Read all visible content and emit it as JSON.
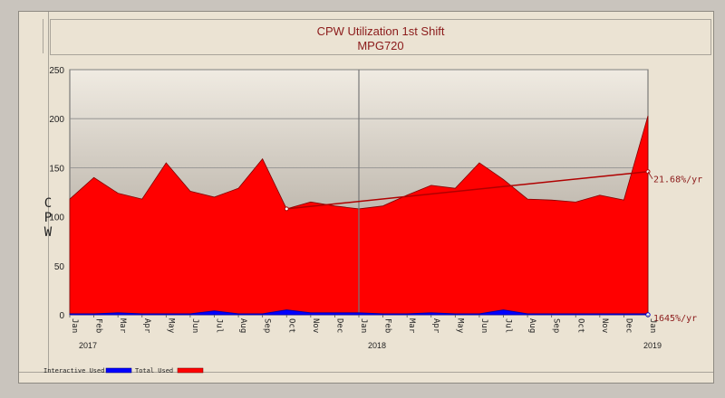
{
  "chart_data": {
    "type": "area",
    "title": "CPW Utilization 1st Shift",
    "subtitle": "MPG720",
    "ylabel": "CPW",
    "ylim": [
      0,
      250
    ],
    "yticks": [
      "0",
      "50",
      "100",
      "150",
      "200",
      "250"
    ],
    "x": [
      "Jan",
      "Feb",
      "Mar",
      "Apr",
      "May",
      "Jun",
      "Jul",
      "Aug",
      "Sep",
      "Oct",
      "Nov",
      "Dec",
      "Jan",
      "Feb",
      "Mar",
      "Apr",
      "May",
      "Jun",
      "Jul",
      "Aug",
      "Sep",
      "Oct",
      "Nov",
      "Dec",
      "Jan"
    ],
    "year_labels": [
      "2017",
      "2018",
      "2019"
    ],
    "grid": true,
    "series": [
      {
        "name": "Total Used",
        "color": "#ff0000",
        "values": [
          118,
          140,
          124,
          118,
          155,
          126,
          120,
          129,
          159,
          108,
          115,
          111,
          108,
          111,
          122,
          132,
          129,
          155,
          138,
          118,
          117,
          115,
          122,
          117,
          203
        ]
      },
      {
        "name": "Interactive Used",
        "color": "#0000ff",
        "values": [
          1,
          1,
          2,
          1,
          1,
          1,
          4,
          1,
          1,
          5,
          2,
          2,
          2,
          1,
          1,
          2,
          1,
          1,
          5,
          1,
          1,
          1,
          1,
          1,
          1
        ]
      }
    ],
    "trend_total": {
      "start": 108,
      "end": 146,
      "label": "21.68%/yr"
    },
    "trend_interactive": {
      "label": "1645%/yr"
    },
    "legend_position": "bottom-left"
  }
}
